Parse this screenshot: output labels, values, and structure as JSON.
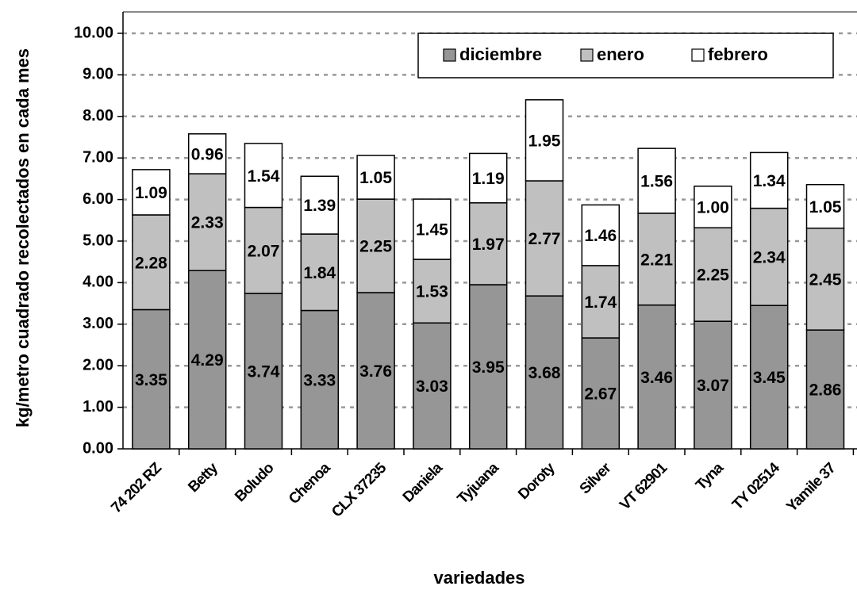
{
  "chart_data": {
    "type": "stacked-bar",
    "x_label": "variedades",
    "y_label": "kg/metro cuadrado recolectados en cada mes",
    "categories": [
      "74 202 RZ",
      "Betty",
      "Boludo",
      "Chenoa",
      "CLX 37235",
      "Daniela",
      "Tyjuana",
      "Doroty",
      "Silver",
      "VT 62901",
      "Tyna",
      "TY 02514",
      "Yamile 37"
    ],
    "series": [
      {
        "name": "diciembre",
        "color": "#969696",
        "values": [
          3.35,
          4.29,
          3.74,
          3.33,
          3.76,
          3.03,
          3.95,
          3.68,
          2.67,
          3.46,
          3.07,
          3.45,
          2.86
        ],
        "value_labels": [
          "3.35",
          "4.29",
          "3.74",
          "3.33",
          "3.76",
          "3.03",
          "3.95",
          "3.68",
          "2.67",
          "3.46",
          "3.07",
          "3.45",
          "2.86"
        ]
      },
      {
        "name": "enero",
        "color": "#c0c0c0",
        "values": [
          2.28,
          2.33,
          2.07,
          1.84,
          2.25,
          1.53,
          1.97,
          2.77,
          1.74,
          2.21,
          2.25,
          2.34,
          2.45
        ],
        "value_labels": [
          "2.28",
          "2.33",
          "2.07",
          "1.84",
          "2.25",
          "1.53",
          "1.97",
          "2.77",
          "1.74",
          "2.21",
          "2.25",
          "2.34",
          "2.45"
        ]
      },
      {
        "name": "febrero",
        "color": "#ffffff",
        "values": [
          1.09,
          0.96,
          1.54,
          1.39,
          1.05,
          1.45,
          1.19,
          1.95,
          1.46,
          1.56,
          1.0,
          1.34,
          1.05
        ],
        "value_labels": [
          "1.09",
          "0.96",
          "1.54",
          "1.39",
          "1.05",
          "1.45",
          "1.19",
          "1.95",
          "1.46",
          "1.56",
          "1.00",
          "1.34",
          "1.05"
        ]
      }
    ],
    "ylim": [
      0,
      10
    ],
    "yticks": [
      {
        "value": 0,
        "label": "0.00"
      },
      {
        "value": 1,
        "label": "1.00"
      },
      {
        "value": 2,
        "label": "2.00"
      },
      {
        "value": 3,
        "label": "3.00"
      },
      {
        "value": 4,
        "label": "4.00"
      },
      {
        "value": 5,
        "label": "5.00"
      },
      {
        "value": 6,
        "label": "6.00"
      },
      {
        "value": 7,
        "label": "7.00"
      },
      {
        "value": 8,
        "label": "8.00"
      },
      {
        "value": 9,
        "label": "9.00"
      },
      {
        "value": 10,
        "label": "10.00"
      }
    ],
    "grid": true,
    "legend": "top-right"
  }
}
